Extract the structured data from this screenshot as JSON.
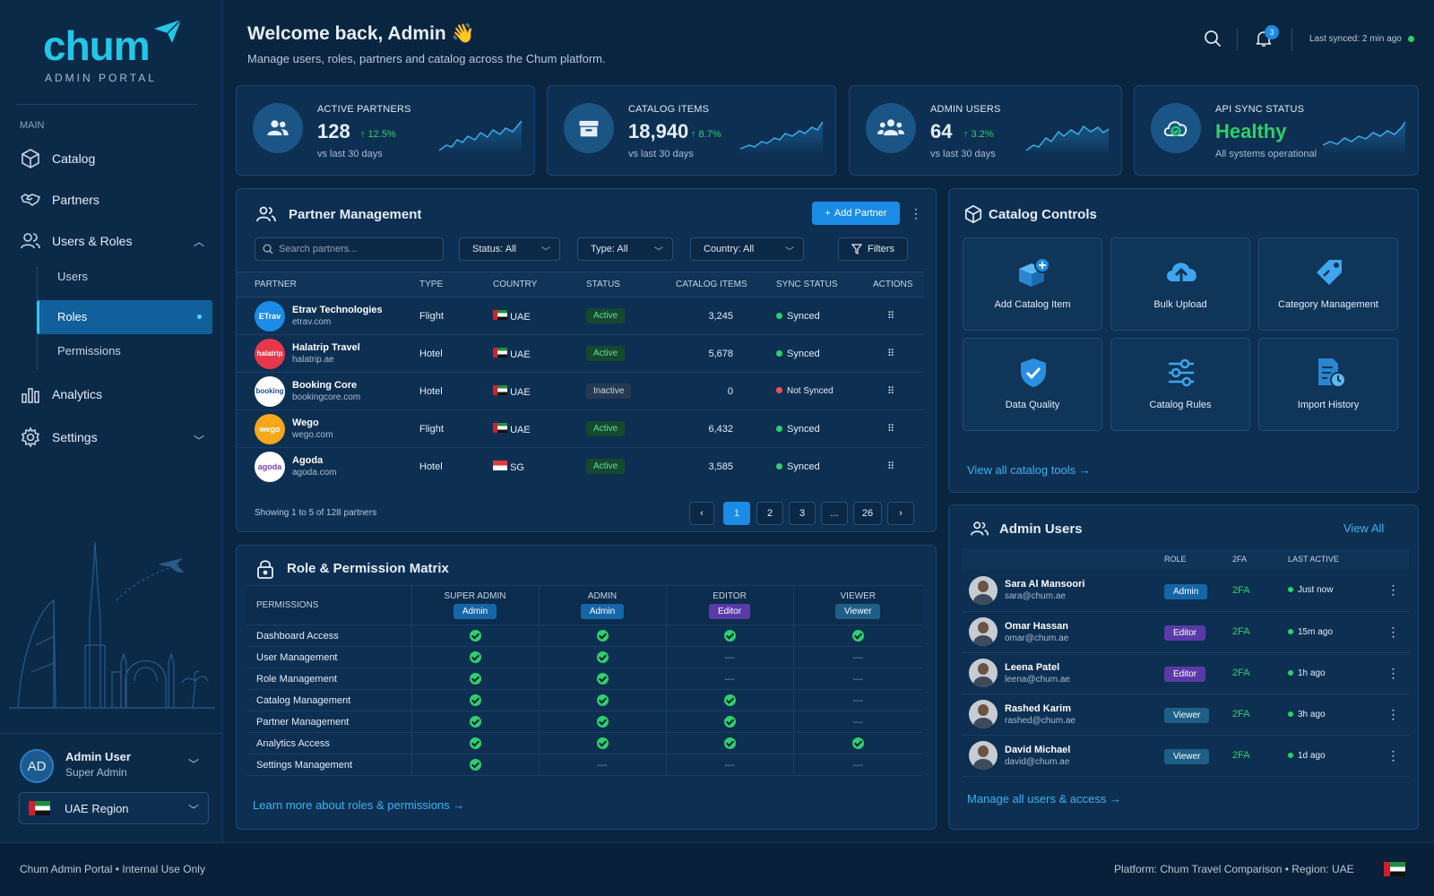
{
  "sidebar": {
    "logo": "chum",
    "logo_sub": "ADMIN PORTAL",
    "section": "MAIN",
    "nav": {
      "catalog": "Catalog",
      "partners": "Partners",
      "users_roles": "Users & Roles",
      "analytics": "Analytics",
      "settings": "Settings"
    },
    "sub": {
      "users": "Users",
      "roles": "Roles",
      "permissions": "Permissions"
    },
    "user": {
      "initials": "AD",
      "name": "Admin User",
      "role": "Super Admin"
    },
    "region": "UAE Region"
  },
  "header": {
    "welcome": "Welcome back, Admin",
    "wave": "👋",
    "subtitle": "Manage users, roles, partners and catalog across the Chum platform.",
    "notifications": "3",
    "last_synced": "Last synced: 2 min ago"
  },
  "stats": [
    {
      "label": "ACTIVE PARTNERS",
      "value": "128",
      "delta": "↑ 12.5%",
      "sub": "vs last 30 days"
    },
    {
      "label": "CATALOG ITEMS",
      "value": "18,940",
      "delta": "↑ 8.7%",
      "sub": "vs last 30 days"
    },
    {
      "label": "ADMIN USERS",
      "value": "64",
      "delta": "↑ 3.2%",
      "sub": "vs last 30 days"
    },
    {
      "label": "API SYNC STATUS",
      "value": "Healthy",
      "delta": "",
      "sub": "All systems operational"
    }
  ],
  "partners": {
    "title": "Partner Management",
    "add_button": "Add Partner",
    "search_placeholder": "Search partners...",
    "filter_status": "Status: All",
    "filter_type": "Type: All",
    "filter_country": "Country: All",
    "filters_button": "Filters",
    "columns": [
      "PARTNER",
      "TYPE",
      "COUNTRY",
      "STATUS",
      "CATALOG ITEMS",
      "SYNC STATUS",
      "ACTIONS"
    ],
    "rows": [
      {
        "logo": "ETrav",
        "name": "Etrav Technologies",
        "domain": "etrav.com",
        "type": "Flight",
        "country": "UAE",
        "status": "Active",
        "items": "3,245",
        "sync": "Synced"
      },
      {
        "logo": "halatrip",
        "name": "Halatrip Travel",
        "domain": "halatrip.ae",
        "type": "Hotel",
        "country": "UAE",
        "status": "Active",
        "items": "5,678",
        "sync": "Synced"
      },
      {
        "logo": "booking",
        "name": "Booking Core",
        "domain": "bookingcore.com",
        "type": "Hotel",
        "country": "UAE",
        "status": "Inactive",
        "items": "0",
        "sync": "Not Synced"
      },
      {
        "logo": "wego",
        "name": "Wego",
        "domain": "wego.com",
        "type": "Flight",
        "country": "UAE",
        "status": "Active",
        "items": "6,432",
        "sync": "Synced"
      },
      {
        "logo": "agoda",
        "name": "Agoda",
        "domain": "agoda.com",
        "type": "Hotel",
        "country": "SG",
        "status": "Active",
        "items": "3,585",
        "sync": "Synced"
      }
    ],
    "showing": "Showing 1 to 5 of 128 partners",
    "pages": [
      "1",
      "2",
      "3",
      "...",
      "26"
    ],
    "prev": "‹",
    "next": "›"
  },
  "matrix": {
    "title": "Role & Permission Matrix",
    "corner": "PERMISSIONS",
    "roles": [
      {
        "header": "SUPER ADMIN",
        "pill": "Admin"
      },
      {
        "header": "ADMIN",
        "pill": "Admin"
      },
      {
        "header": "EDITOR",
        "pill": "Editor"
      },
      {
        "header": "VIEWER",
        "pill": "Viewer"
      }
    ],
    "rows": [
      {
        "name": "Dashboard Access",
        "grants": [
          true,
          true,
          true,
          true
        ]
      },
      {
        "name": "User Management",
        "grants": [
          true,
          true,
          false,
          false
        ]
      },
      {
        "name": "Role Management",
        "grants": [
          true,
          true,
          false,
          false
        ]
      },
      {
        "name": "Catalog Management",
        "grants": [
          true,
          true,
          true,
          false
        ]
      },
      {
        "name": "Partner Management",
        "grants": [
          true,
          true,
          true,
          false
        ]
      },
      {
        "name": "Analytics Access",
        "grants": [
          true,
          true,
          true,
          true
        ]
      },
      {
        "name": "Settings Management",
        "grants": [
          true,
          false,
          false,
          false
        ]
      }
    ],
    "dash": "—",
    "learn_more": "Learn more about roles & permissions"
  },
  "catalog": {
    "title": "Catalog Controls",
    "tiles": [
      "Add Catalog Item",
      "Bulk Upload",
      "Category Management",
      "Data Quality",
      "Catalog Rules",
      "Import History"
    ],
    "view_all": "View all catalog tools"
  },
  "admins": {
    "title": "Admin Users",
    "view_all": "View All",
    "columns": [
      "ROLE",
      "2FA",
      "LAST ACTIVE"
    ],
    "rows": [
      {
        "name": "Sara Al Mansoori",
        "email": "sara@chum.ae",
        "role": "Admin",
        "twofa": "2FA",
        "last": "Just now"
      },
      {
        "name": "Omar Hassan",
        "email": "omar@chum.ae",
        "role": "Editor",
        "twofa": "2FA",
        "last": "15m ago"
      },
      {
        "name": "Leena Patel",
        "email": "leena@chum.ae",
        "role": "Editor",
        "twofa": "2FA",
        "last": "1h ago"
      },
      {
        "name": "Rashed Karim",
        "email": "rashed@chum.ae",
        "role": "Viewer",
        "twofa": "2FA",
        "last": "3h ago"
      },
      {
        "name": "David Michael",
        "email": "david@chum.ae",
        "role": "Viewer",
        "twofa": "2FA",
        "last": "1d ago"
      }
    ],
    "manage": "Manage all users & access"
  },
  "footer": {
    "left": "Chum Admin Portal  •  Internal Use Only",
    "right": "Platform: Chum Travel Comparison  •  Region: UAE"
  },
  "colors": {
    "accent": "#1a8ce6",
    "success": "#2fd06a",
    "danger": "#ff4d5a",
    "bg": "#0a2540",
    "brand": "#22c7e8"
  }
}
